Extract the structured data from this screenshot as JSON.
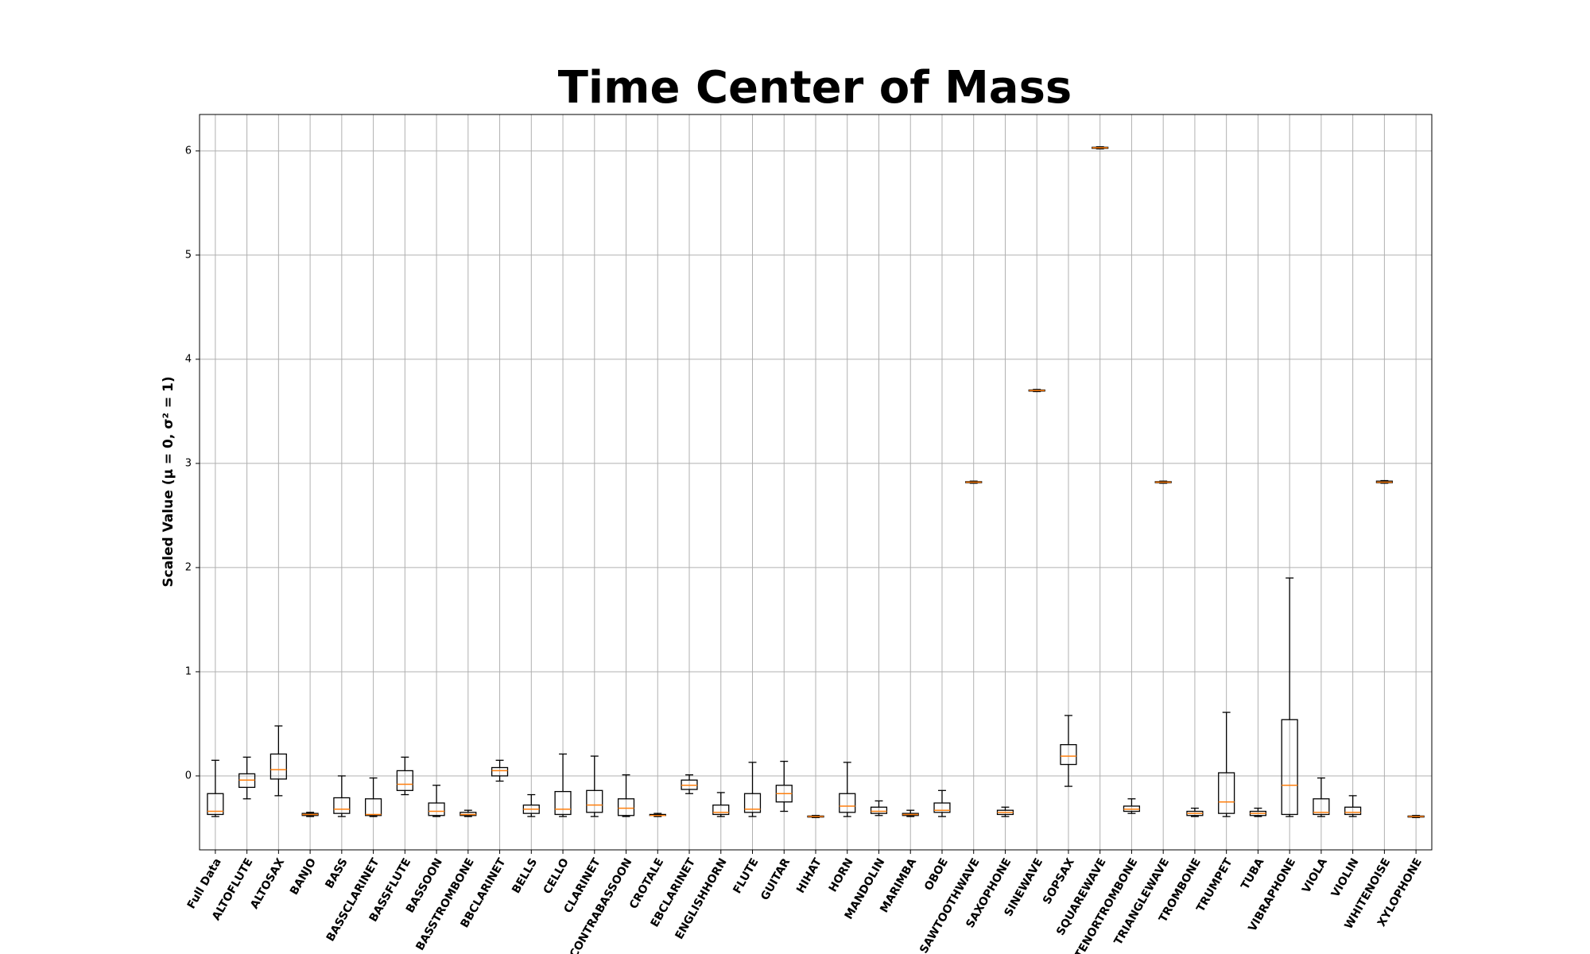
{
  "chart_data": {
    "type": "box",
    "title": "Time Center of Mass",
    "y_label": "Scaled Value (μ = 0, σ² = 1)",
    "categories": [
      "Full Data",
      "ALTOFLUTE",
      "ALTOSAX",
      "BANJO",
      "BASS",
      "BASSCLARINET",
      "BASSFLUTE",
      "BASSOON",
      "BASSTROMBONE",
      "BBCLARINET",
      "BELLS",
      "CELLO",
      "CLARINET",
      "CONTRABASSOON",
      "CROTALE",
      "EBCLARINET",
      "ENGLISHHORN",
      "FLUTE",
      "GUITAR",
      "HIHAT",
      "HORN",
      "MANDOLIN",
      "MARIMBA",
      "OBOE",
      "SAWTOOTHWAVE",
      "SAXOPHONE",
      "SINEWAVE",
      "SOPSAX",
      "SQUAREWAVE",
      "TENORTROMBONE",
      "TRIANGLEWAVE",
      "TROMBONE",
      "TRUMPET",
      "TUBA",
      "VIBRAPHONE",
      "VIOLA",
      "VIOLIN",
      "WHITENOISE",
      "XYLOPHONE"
    ],
    "whisker_low": [
      -0.39,
      -0.22,
      -0.19,
      -0.39,
      -0.39,
      -0.39,
      -0.18,
      -0.39,
      -0.39,
      -0.05,
      -0.39,
      -0.39,
      -0.39,
      -0.39,
      -0.39,
      -0.17,
      -0.39,
      -0.39,
      -0.34,
      -0.4,
      -0.39,
      -0.38,
      -0.39,
      -0.39,
      2.81,
      -0.39,
      3.69,
      -0.1,
      6.02,
      -0.36,
      2.81,
      -0.39,
      -0.39,
      -0.39,
      -0.39,
      -0.39,
      -0.39,
      2.81,
      -0.4
    ],
    "q1": [
      -0.37,
      -0.11,
      -0.03,
      -0.38,
      -0.36,
      -0.38,
      -0.14,
      -0.38,
      -0.38,
      0.0,
      -0.36,
      -0.37,
      -0.35,
      -0.38,
      -0.38,
      -0.13,
      -0.37,
      -0.35,
      -0.25,
      -0.395,
      -0.35,
      -0.36,
      -0.38,
      -0.35,
      2.815,
      -0.37,
      3.695,
      0.11,
      6.025,
      -0.34,
      2.815,
      -0.38,
      -0.36,
      -0.38,
      -0.37,
      -0.37,
      -0.37,
      2.815,
      -0.395
    ],
    "median": [
      -0.34,
      -0.04,
      0.06,
      -0.37,
      -0.32,
      -0.37,
      -0.08,
      -0.34,
      -0.37,
      0.05,
      -0.32,
      -0.32,
      -0.28,
      -0.31,
      -0.38,
      -0.09,
      -0.35,
      -0.32,
      -0.17,
      -0.39,
      -0.29,
      -0.34,
      -0.37,
      -0.33,
      2.82,
      -0.35,
      3.7,
      0.19,
      6.03,
      -0.32,
      2.82,
      -0.36,
      -0.25,
      -0.36,
      -0.09,
      -0.35,
      -0.35,
      2.82,
      -0.39
    ],
    "q3": [
      -0.17,
      0.02,
      0.21,
      -0.36,
      -0.21,
      -0.22,
      0.05,
      -0.26,
      -0.35,
      0.08,
      -0.28,
      -0.15,
      -0.14,
      -0.22,
      -0.37,
      -0.04,
      -0.28,
      -0.17,
      -0.09,
      -0.385,
      -0.17,
      -0.3,
      -0.36,
      -0.26,
      2.825,
      -0.33,
      3.705,
      0.3,
      6.035,
      -0.29,
      2.825,
      -0.34,
      0.03,
      -0.34,
      0.54,
      -0.22,
      -0.3,
      2.83,
      -0.385
    ],
    "whisker_high": [
      0.15,
      0.18,
      0.48,
      -0.35,
      0.0,
      -0.02,
      0.18,
      -0.09,
      -0.33,
      0.15,
      -0.18,
      0.21,
      0.19,
      0.01,
      -0.36,
      0.01,
      -0.16,
      0.13,
      0.14,
      -0.38,
      0.13,
      -0.24,
      -0.33,
      -0.14,
      2.83,
      -0.3,
      3.71,
      0.58,
      6.04,
      -0.22,
      2.83,
      -0.31,
      0.61,
      -0.31,
      1.9,
      -0.02,
      -0.19,
      2.835,
      -0.38
    ],
    "box_color": "#000000",
    "median_color": "#ff7f0e",
    "ylim": [
      -0.71,
      6.35
    ],
    "yticks": [
      0,
      1,
      2,
      3,
      4,
      5,
      6
    ],
    "grid": true
  }
}
